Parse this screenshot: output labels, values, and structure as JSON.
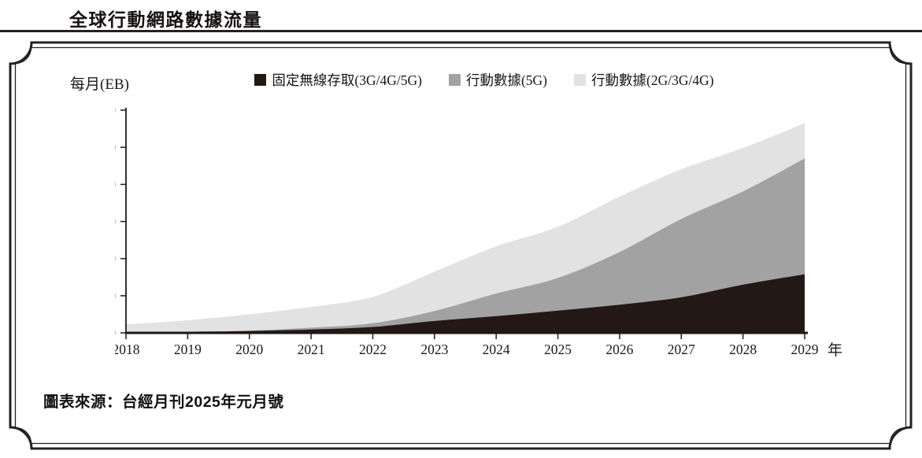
{
  "header": {
    "title": "全球行動網路數據流量"
  },
  "footer": {
    "source": "圖表來源：台經月刊2025年元月號"
  },
  "chart_data": {
    "type": "area",
    "stacked": true,
    "title": "全球行動網路數據流量",
    "y_unit_label": "每月(EB)",
    "x_axis_suffix": "年",
    "ylim": [
      0,
      600
    ],
    "yticks": [
      0,
      100,
      200,
      300,
      400,
      500,
      600
    ],
    "categories": [
      2018,
      2019,
      2020,
      2021,
      2022,
      2023,
      2024,
      2025,
      2026,
      2027,
      2028,
      2029
    ],
    "grid": false,
    "legend_position": "top",
    "axis_color": "#1f1a18",
    "series": [
      {
        "name": "固定無線存取(3G/4G/5G)",
        "color": "#231815",
        "values": [
          2,
          3,
          5,
          9,
          16,
          32,
          45,
          60,
          76,
          96,
          130,
          158
        ]
      },
      {
        "name": "行動數據(5G)",
        "color": "#a2a2a2",
        "values": [
          0,
          0,
          1,
          5,
          10,
          27,
          61,
          88,
          142,
          211,
          251,
          312
        ]
      },
      {
        "name": "行動數據(2G/3G/4G)",
        "color": "#e2e2e2",
        "values": [
          21,
          31,
          44,
          56,
          71,
          106,
          127,
          138,
          149,
          134,
          117,
          95
        ]
      }
    ]
  }
}
